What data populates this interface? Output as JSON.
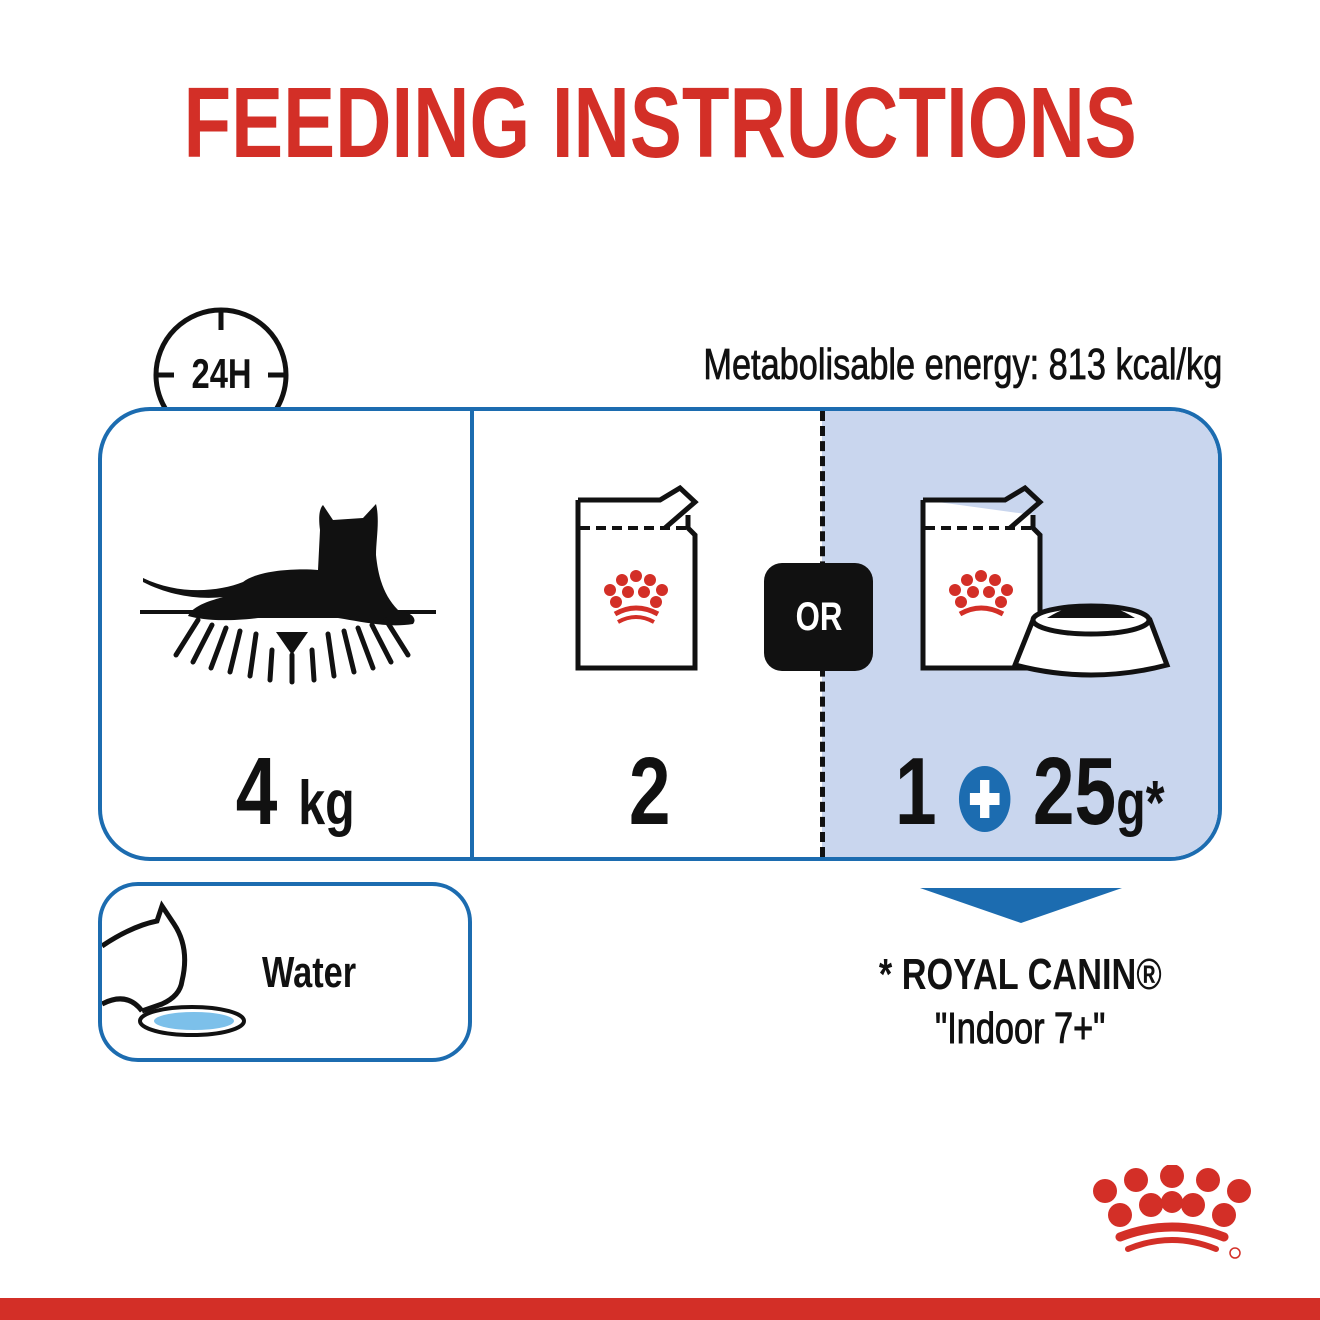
{
  "title": "FEEDING INSTRUCTIONS",
  "clock_label": "24H",
  "energy": "Metabolisable energy: 813 kcal/kg",
  "cat_weight": {
    "value": "4",
    "unit": "kg"
  },
  "pouch_only": {
    "count": "2"
  },
  "or_label": "OR",
  "mixed": {
    "pouch_count": "1",
    "dry_amount": "25",
    "dry_unit": "g*"
  },
  "water_label": "Water",
  "footnote": {
    "line1": "* ROYAL CANIN®",
    "line2": "\"Indoor 7+\""
  },
  "colors": {
    "brand_red": "#d32f27",
    "accent_blue": "#1c6cb0",
    "panel_blue": "#c9d6ee"
  }
}
